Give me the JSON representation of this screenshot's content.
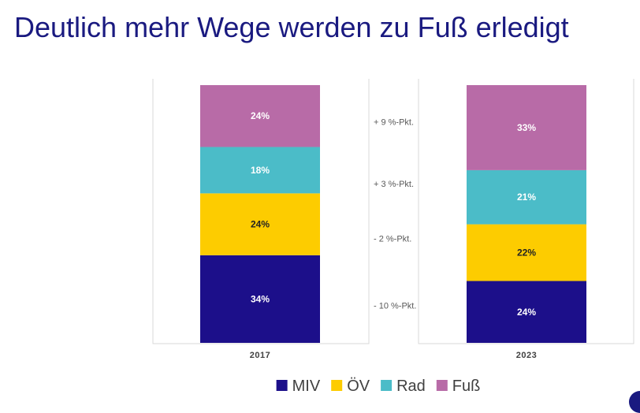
{
  "slide": {
    "title": "Deutlich mehr Wege werden zu Fuß erledigt"
  },
  "chart_data": {
    "type": "bar",
    "stacked": true,
    "percent": true,
    "title": "Deutlich mehr Wege werden zu Fuß erledigt",
    "categories": [
      "2017",
      "2023"
    ],
    "series": [
      {
        "name": "MIV",
        "values": [
          34,
          24
        ],
        "labels": [
          "34%",
          "24%"
        ],
        "color": "#1c0f8a",
        "label_color": "#ffffff"
      },
      {
        "name": "ÖV",
        "values": [
          24,
          22
        ],
        "labels": [
          "24%",
          "22%"
        ],
        "color": "#fdcc00",
        "label_color": "#222222"
      },
      {
        "name": "Rad",
        "values": [
          18,
          21
        ],
        "labels": [
          "18%",
          "21%"
        ],
        "color": "#4bbcc8",
        "label_color": "#ffffff"
      },
      {
        "name": "Fuß",
        "values": [
          24,
          33
        ],
        "labels": [
          "24%",
          "33%"
        ],
        "color": "#b86ba7",
        "label_color": "#ffffff"
      }
    ],
    "annotations": [
      {
        "series": "Fuß",
        "text": "+ 9 %-Pkt."
      },
      {
        "series": "Rad",
        "text": "+ 3 %-Pkt."
      },
      {
        "series": "ÖV",
        "text": "- 2 %-Pkt."
      },
      {
        "series": "MIV",
        "text": "- 10 %-Pkt."
      }
    ],
    "legend": {
      "position": "bottom",
      "entries": [
        "MIV",
        "ÖV",
        "Rad",
        "Fuß"
      ]
    },
    "xlabel": "",
    "ylabel": "",
    "ylim": [
      0,
      100
    ]
  }
}
